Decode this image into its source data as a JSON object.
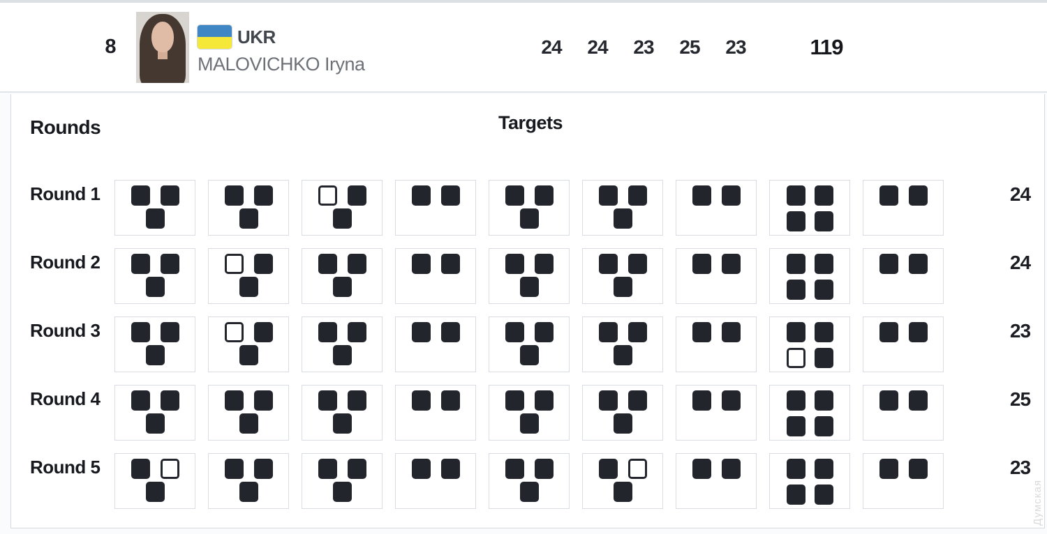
{
  "header": {
    "bib": "8",
    "flag": {
      "icon": "ukraine-flag-icon",
      "top_color": "#3e87c4",
      "bottom_color": "#f6e838"
    },
    "country_code": "UKR",
    "athlete_name": "MALOVICHKO Iryna",
    "round_scores": [
      "24",
      "24",
      "23",
      "25",
      "23"
    ],
    "total_score": "119"
  },
  "scorecard": {
    "rounds_header": "Rounds",
    "targets_header": "Targets",
    "hit_color": "#23252d",
    "rows": [
      {
        "label": "Round 1",
        "score": "24",
        "stations": [
          [
            1,
            1,
            1
          ],
          [
            1,
            1,
            1
          ],
          [
            0,
            1,
            1
          ],
          [
            1,
            1
          ],
          [
            1,
            1,
            1
          ],
          [
            1,
            1,
            1
          ],
          [
            1,
            1
          ],
          [
            1,
            1,
            1,
            1
          ],
          [
            1,
            1
          ]
        ]
      },
      {
        "label": "Round 2",
        "score": "24",
        "stations": [
          [
            1,
            1,
            1
          ],
          [
            0,
            1,
            1
          ],
          [
            1,
            1,
            1
          ],
          [
            1,
            1
          ],
          [
            1,
            1,
            1
          ],
          [
            1,
            1,
            1
          ],
          [
            1,
            1
          ],
          [
            1,
            1,
            1,
            1
          ],
          [
            1,
            1
          ]
        ]
      },
      {
        "label": "Round 3",
        "score": "23",
        "stations": [
          [
            1,
            1,
            1
          ],
          [
            0,
            1,
            1
          ],
          [
            1,
            1,
            1
          ],
          [
            1,
            1
          ],
          [
            1,
            1,
            1
          ],
          [
            1,
            1,
            1
          ],
          [
            1,
            1
          ],
          [
            1,
            1,
            0,
            1
          ],
          [
            1,
            1
          ]
        ]
      },
      {
        "label": "Round 4",
        "score": "25",
        "stations": [
          [
            1,
            1,
            1
          ],
          [
            1,
            1,
            1
          ],
          [
            1,
            1,
            1
          ],
          [
            1,
            1
          ],
          [
            1,
            1,
            1
          ],
          [
            1,
            1,
            1
          ],
          [
            1,
            1
          ],
          [
            1,
            1,
            1,
            1
          ],
          [
            1,
            1
          ]
        ]
      },
      {
        "label": "Round 5",
        "score": "23",
        "stations": [
          [
            1,
            0,
            1
          ],
          [
            1,
            1,
            1
          ],
          [
            1,
            1,
            1
          ],
          [
            1,
            1
          ],
          [
            1,
            1,
            1
          ],
          [
            1,
            0,
            1
          ],
          [
            1,
            1
          ],
          [
            1,
            1,
            1,
            1
          ],
          [
            1,
            1
          ]
        ]
      }
    ]
  },
  "watermark": "Думская"
}
